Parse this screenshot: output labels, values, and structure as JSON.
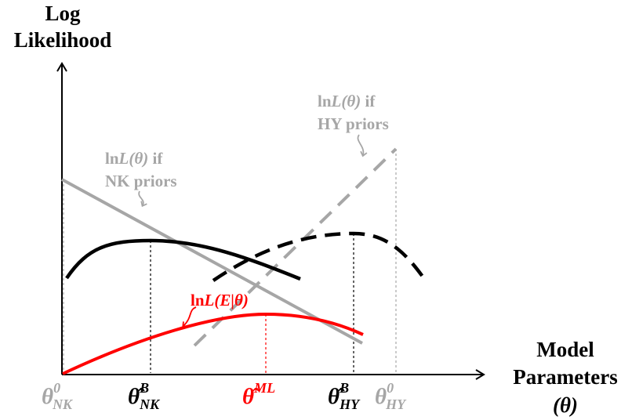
{
  "y_axis": {
    "title_line1": "Log",
    "title_line2": "Likelihood"
  },
  "x_axis": {
    "title_line1": "Model",
    "title_line2": "Parameters",
    "title_line3": "(θ)"
  },
  "annotations": {
    "nk_priors": {
      "line1_prefix": "ln",
      "line1_func": "L(θ)",
      "line1_suffix": " if",
      "line2": "NK priors"
    },
    "hy_priors": {
      "line1_prefix": "ln",
      "line1_func": "L(θ)",
      "line1_suffix": " if",
      "line2": "HY priors"
    },
    "evidence": {
      "prefix": "ln",
      "func": "L(E|θ)"
    }
  },
  "tick_labels": {
    "theta_nk0": {
      "base": "θ",
      "sup": "0",
      "sub": "NK"
    },
    "theta_nk_b": {
      "base": "θ̂",
      "sup": "B",
      "sub": "NK"
    },
    "theta_ml": {
      "base": "θ̂",
      "sup": "ML",
      "sub": ""
    },
    "theta_hy_b": {
      "base": "θ̂",
      "sup": "B",
      "sub": "HY"
    },
    "theta_hy0": {
      "base": "θ",
      "sup": "0",
      "sub": "HY"
    }
  },
  "colors": {
    "black": "#000000",
    "gray": "#a6a6a6",
    "red": "#ff0000"
  }
}
